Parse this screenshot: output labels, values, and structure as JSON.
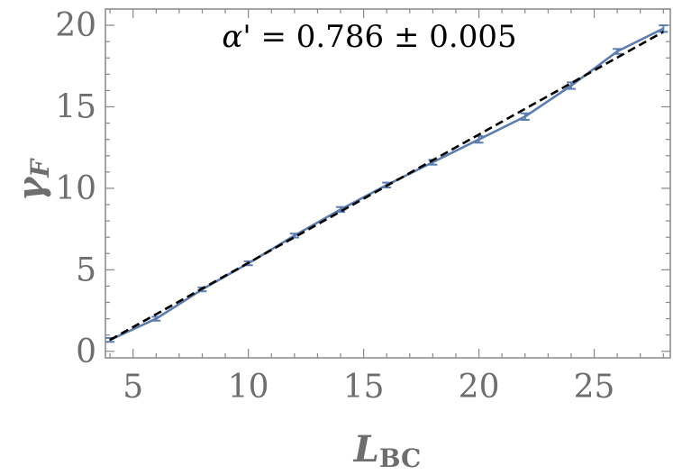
{
  "chart_data": {
    "type": "line",
    "title": "",
    "annotation": {
      "symbol": "α'",
      "value": "0.786",
      "pm": "±",
      "error": "0.005"
    },
    "xlabel": {
      "main": "L",
      "sub": "BC"
    },
    "ylabel": {
      "main": "γ",
      "sub": "F"
    },
    "xlim": [
      3.8,
      28.3
    ],
    "ylim": [
      -0.4,
      21.0
    ],
    "xticks": [
      5,
      10,
      15,
      20,
      25
    ],
    "yticks": [
      0,
      5,
      10,
      15,
      20
    ],
    "grid": false,
    "series": [
      {
        "kind": "data_with_errorbars",
        "color": "#5b7db1",
        "x": [
          4,
          6,
          8,
          10,
          12,
          14,
          16,
          18,
          20,
          22,
          24,
          26,
          28
        ],
        "y": [
          0.7,
          2.0,
          3.8,
          5.4,
          7.1,
          8.7,
          10.2,
          11.6,
          13.0,
          14.4,
          16.3,
          18.4,
          19.8
        ],
        "err": [
          0.05,
          0.1,
          0.1,
          0.1,
          0.1,
          0.15,
          0.15,
          0.15,
          0.2,
          0.2,
          0.2,
          0.15,
          0.2
        ]
      },
      {
        "kind": "fit",
        "style": "dashed",
        "color": "#000000",
        "x": [
          4,
          28
        ],
        "y": [
          0.7,
          19.6
        ]
      }
    ]
  }
}
